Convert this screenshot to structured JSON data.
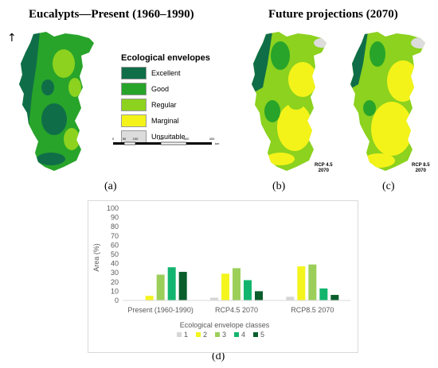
{
  "headers": {
    "present": "Eucalypts—Present (1960–1990)",
    "future": "Future projections (2070)"
  },
  "north_arrow": "↑",
  "legend": {
    "title": "Ecological envelopes",
    "items": [
      {
        "label": "Excellent",
        "color": "#0f6e48"
      },
      {
        "label": "Good",
        "color": "#28a42a"
      },
      {
        "label": "Regular",
        "color": "#8cd21e"
      },
      {
        "label": "Marginal",
        "color": "#f3f31a"
      },
      {
        "label": "Unsuitable",
        "color": "#dcdcdc"
      }
    ]
  },
  "scale_bar": {
    "ticks": [
      "0",
      "50",
      "100",
      "200",
      "300",
      "400"
    ],
    "unit": "km"
  },
  "map_labels": {
    "b": {
      "line1": "RCP 4.5",
      "line2": "2070"
    },
    "c": {
      "line1": "RCP 8.5",
      "line2": "2070"
    }
  },
  "panel_labels": {
    "a": "(a)",
    "b": "(b)",
    "c": "(c)",
    "d": "(d)"
  },
  "chart_data": {
    "type": "bar",
    "categories": [
      "Present (1960-1990)",
      "RCP4.5 2070",
      "RCP8.5 2070"
    ],
    "series": [
      {
        "name": "1",
        "color": "#d6d6d6",
        "values": [
          0,
          3,
          4
        ]
      },
      {
        "name": "2",
        "color": "#f5f51e",
        "values": [
          5,
          29,
          37
        ]
      },
      {
        "name": "3",
        "color": "#9ccf5a",
        "values": [
          28,
          35,
          39
        ]
      },
      {
        "name": "4",
        "color": "#13b56e",
        "values": [
          36,
          22,
          13
        ]
      },
      {
        "name": "5",
        "color": "#0a5e2c",
        "values": [
          31,
          10,
          6
        ]
      }
    ],
    "title": "",
    "xlabel": "Ecological envelope classes",
    "ylabel": "Area  (%)",
    "ylim": [
      0,
      100
    ],
    "yticks": [
      "0",
      "10",
      "20",
      "30",
      "40",
      "50",
      "60",
      "70",
      "80",
      "90",
      "100"
    ],
    "grid": false,
    "legend_position": "bottom"
  }
}
